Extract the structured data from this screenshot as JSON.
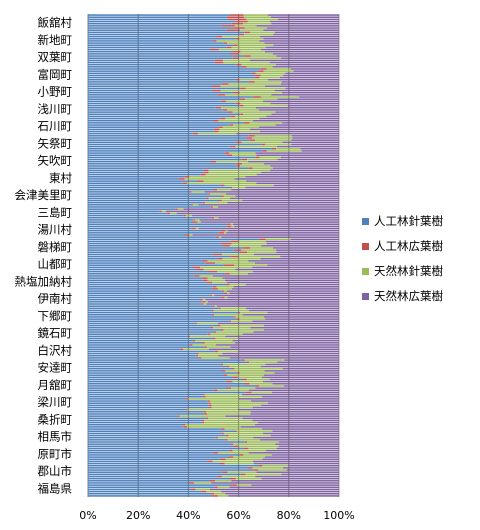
{
  "chart_data": {
    "type": "bar",
    "orientation": "horizontal",
    "stacked": "percent",
    "title": "",
    "xlabel": "",
    "ylabel": "",
    "xlim": [
      0,
      100
    ],
    "x_ticks": [
      "0%",
      "20%",
      "40%",
      "60%",
      "80%",
      "100%"
    ],
    "grid": true,
    "legend_position": "right",
    "categories": [
      "飯舘村",
      "新地町",
      "双葉町",
      "富岡町",
      "小野町",
      "浅川町",
      "石川町",
      "矢祭町",
      "矢吹町",
      "東村",
      "会津美里町",
      "三島町",
      "湯川村",
      "磐梯町",
      "山都町",
      "熱塩加納村",
      "伊南村",
      "下郷町",
      "鏡石町",
      "白沢村",
      "安達町",
      "月舘町",
      "梁川町",
      "桑折町",
      "相馬市",
      "原町市",
      "郡山市",
      "福島県"
    ],
    "series": [
      {
        "name": "人工林針葉樹",
        "color": "#4F81BD",
        "values": [
          60,
          55,
          53,
          63,
          58,
          57,
          53,
          66,
          60,
          42,
          48,
          40,
          48,
          58,
          50,
          52,
          48,
          52,
          48,
          42,
          55,
          58,
          44,
          42,
          55,
          58,
          57,
          50
        ]
      },
      {
        "name": "人工林広葉樹",
        "color": "#C0504D",
        "values": [
          5,
          2,
          3,
          2,
          3,
          2,
          2,
          2,
          2,
          2,
          1,
          1,
          2,
          3,
          3,
          2,
          1,
          1,
          1,
          1,
          1,
          2,
          1,
          1,
          1,
          2,
          2,
          2
        ]
      },
      {
        "name": "天然林針葉樹",
        "color": "#9BBB59",
        "values": [
          10,
          14,
          15,
          12,
          17,
          15,
          14,
          12,
          10,
          22,
          6,
          2,
          1,
          13,
          15,
          6,
          1,
          10,
          14,
          10,
          16,
          10,
          20,
          20,
          13,
          12,
          12,
          6
        ]
      },
      {
        "name": "天然林広葉樹",
        "color": "#8064A2",
        "values": [
          25,
          29,
          29,
          23,
          22,
          26,
          31,
          20,
          28,
          34,
          45,
          57,
          49,
          26,
          32,
          40,
          50,
          37,
          37,
          47,
          28,
          30,
          35,
          37,
          31,
          28,
          29,
          42
        ]
      }
    ]
  }
}
